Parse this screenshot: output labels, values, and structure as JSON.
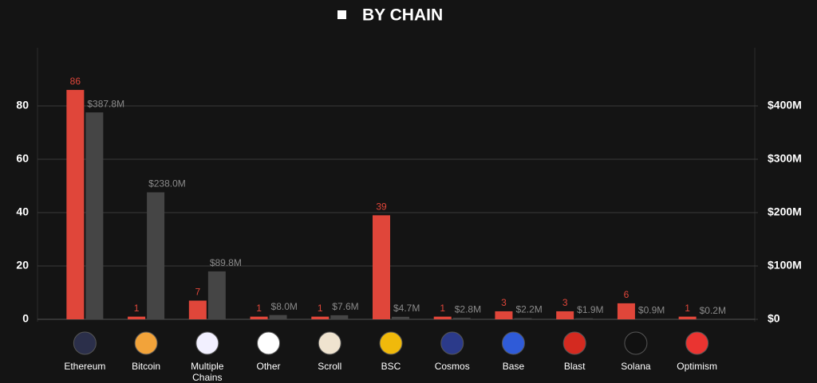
{
  "chart_data": {
    "type": "bar",
    "title": "BY CHAIN",
    "categories": [
      "Ethereum",
      "Bitcoin",
      "Multiple Chains",
      "Other",
      "Scroll",
      "BSC",
      "Cosmos",
      "Base",
      "Blast",
      "Solana",
      "Optimism"
    ],
    "series": [
      {
        "color": "#e0463a",
        "values": [
          86,
          1,
          7,
          1,
          1,
          39,
          1,
          3,
          3,
          6,
          1
        ]
      },
      {
        "color": "#454545",
        "axis": "y2",
        "values": [
          387800000,
          238000000,
          89800000,
          8000000,
          7600000,
          4700000,
          2800000,
          2200000,
          1900000,
          900000,
          200000
        ],
        "value_labels": [
          "$387.8M",
          "$238.0M",
          "$89.8M",
          "$8.0M",
          "$7.6M",
          "$4.7M",
          "$2.8M",
          "$2.2M",
          "$1.9M",
          "$0.9M",
          "$0.2M"
        ]
      }
    ],
    "ylim": [
      0,
      100
    ],
    "yticks": [
      0,
      20,
      40,
      60,
      80
    ],
    "y2lim": [
      0,
      500000000
    ],
    "y2ticks": [
      {
        "value": 0,
        "label": "$0"
      },
      {
        "value": 100000000,
        "label": "$100M"
      },
      {
        "value": 200000000,
        "label": "$200M"
      },
      {
        "value": 300000000,
        "label": "$300M"
      },
      {
        "value": 400000000,
        "label": "$400M"
      }
    ],
    "grid": true
  }
}
